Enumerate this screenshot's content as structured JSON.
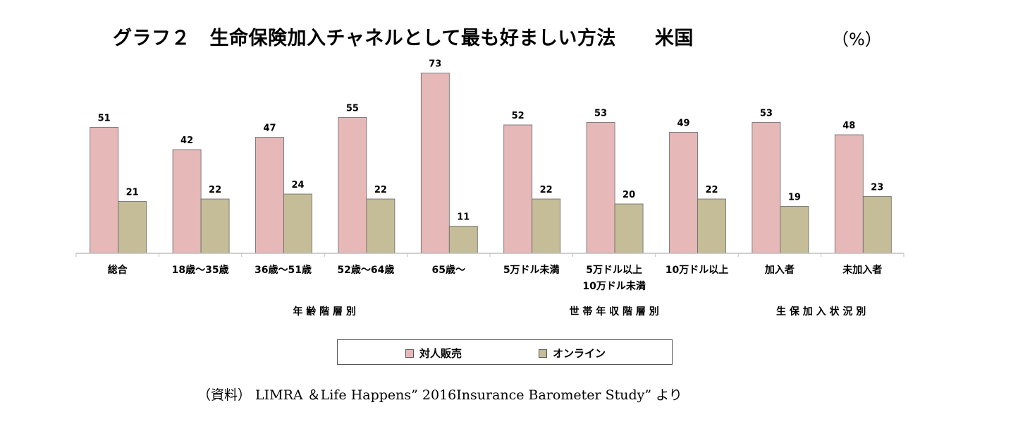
{
  "title": "グラフ２　生命保険加入チャネルとして最も好ましい方法　　米国",
  "unit": "（%）",
  "source": "（資料） LIMRA ＆Life Happens” 2016Insurance Barometer Study” より",
  "colors": {
    "series1": "#e6b8b8",
    "series2": "#c4bd97",
    "axis": "#bfbfbf"
  },
  "chart_data": {
    "type": "bar",
    "categories": [
      "総合",
      "18歳～35歳",
      "36歳～51歳",
      "52歳～64歳",
      "65歳～",
      "5万ドル未満",
      "5万ドル以上\n10万ドル未満",
      "10万ドル以上",
      "加入者",
      "未加入者"
    ],
    "series": [
      {
        "name": "対人販売",
        "values": [
          51,
          42,
          47,
          55,
          73,
          52,
          53,
          49,
          53,
          48
        ]
      },
      {
        "name": "オンライン",
        "values": [
          21,
          22,
          24,
          22,
          11,
          22,
          20,
          22,
          19,
          23
        ]
      }
    ],
    "groups": [
      {
        "label": "年 齢 階 層 別"
      },
      {
        "label": "世 帯 年 収 階 層 別"
      },
      {
        "label": "生 保 加 入 状 況 別"
      }
    ],
    "ylim": [
      0,
      80
    ],
    "grid": false,
    "legend": "bottom"
  }
}
